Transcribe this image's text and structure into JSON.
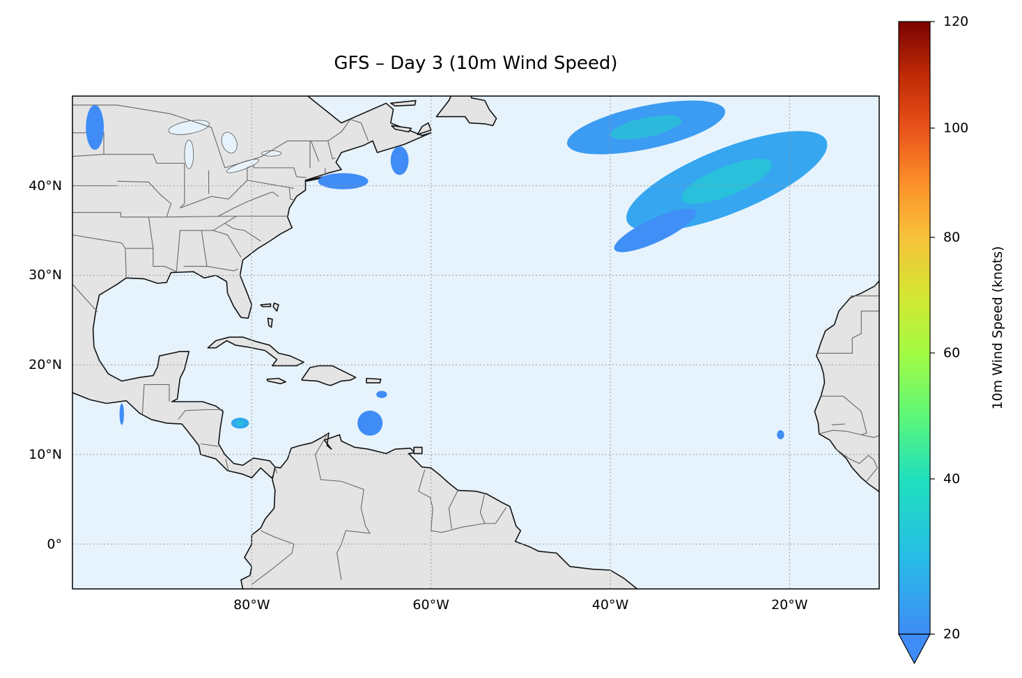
{
  "title": "GFS – Day 3 (10m Wind Speed)",
  "map": {
    "extent": {
      "lon": [
        -100,
        -10
      ],
      "lat": [
        -5,
        50
      ]
    },
    "projection": "PlateCarree",
    "ocean_color": "#e6f3fc",
    "land_color": "#e4e4e4",
    "coast_color": "#111111",
    "gridlines": "dotted",
    "x_ticks": [
      {
        "lon": -80,
        "label": "80°W"
      },
      {
        "lon": -60,
        "label": "60°W"
      },
      {
        "lon": -40,
        "label": "40°W"
      },
      {
        "lon": -20,
        "label": "20°W"
      }
    ],
    "y_ticks": [
      {
        "lat": 40,
        "label": "40°N"
      },
      {
        "lat": 30,
        "label": "30°N"
      },
      {
        "lat": 20,
        "label": "20°N"
      },
      {
        "lat": 10,
        "label": "10°N"
      },
      {
        "lat": 0,
        "label": "0°"
      }
    ]
  },
  "colorbar": {
    "label": "10m Wind Speed (knots)",
    "range": [
      20,
      120
    ],
    "extend": "min",
    "ticks": [
      {
        "value": 120,
        "label": "120"
      },
      {
        "value": 100,
        "label": "100"
      },
      {
        "value": 80,
        "label": "80"
      },
      {
        "value": 60,
        "label": "60"
      },
      {
        "value": 40,
        "label": "40"
      },
      {
        "value": 20,
        "label": "20"
      }
    ],
    "colors": [
      "#3f8cf6",
      "#27bde6",
      "#1fe0bd",
      "#5ef777",
      "#a3fb43",
      "#d4e631",
      "#f6c23a",
      "#fd8f2a",
      "#e8521a",
      "#c02a06",
      "#7a0403"
    ]
  },
  "wind_regions": [
    {
      "name": "central-atlantic-band",
      "lon": -27,
      "lat": 40.5,
      "rx": 12,
      "ry": 3.6,
      "rot": -22,
      "color": "#36a6f0",
      "core": "#25c7d4"
    },
    {
      "name": "north-atlantic-band",
      "lon": -36,
      "lat": 46.5,
      "rx": 9,
      "ry": 2.4,
      "rot": -12,
      "color": "#3c9bf2",
      "core": "#29c0d6"
    },
    {
      "name": "azores-tail",
      "lon": -35,
      "lat": 35,
      "rx": 5,
      "ry": 1.3,
      "rot": -25,
      "color": "#3f8ff6",
      "core": "#3f8ff6"
    },
    {
      "name": "cape-cod-patch",
      "lon": -69.8,
      "lat": 40.5,
      "rx": 2.8,
      "ry": 0.9,
      "rot": 0,
      "color": "#3f8cf6",
      "core": "#3f8cf6"
    },
    {
      "name": "nova-scotia-patch",
      "lon": -63.5,
      "lat": 42.8,
      "rx": 1.0,
      "ry": 1.6,
      "rot": 0,
      "color": "#3f8cf6",
      "core": "#3f8cf6"
    },
    {
      "name": "great-plains-patch",
      "lon": -97.5,
      "lat": 46.5,
      "rx": 1.0,
      "ry": 2.5,
      "rot": 0,
      "color": "#3f8cf6",
      "core": "#3f8cf6"
    },
    {
      "name": "caribbean-patch",
      "lon": -66.8,
      "lat": 13.5,
      "rx": 1.4,
      "ry": 1.4,
      "rot": 0,
      "color": "#3f8cf6",
      "core": "#3f8cf6"
    },
    {
      "name": "nicaragua-patch",
      "lon": -81.3,
      "lat": 13.5,
      "rx": 1.0,
      "ry": 0.6,
      "rot": 0,
      "color": "#2fa8ee",
      "core": "#25c7d4"
    },
    {
      "name": "hispaniola-south-patch",
      "lon": -65.5,
      "lat": 16.7,
      "rx": 0.6,
      "ry": 0.4,
      "rot": 0,
      "color": "#3f8cf6",
      "core": "#3f8cf6"
    },
    {
      "name": "cape-verde-patch",
      "lon": -21,
      "lat": 12.2,
      "rx": 0.4,
      "ry": 0.5,
      "rot": 0,
      "color": "#3f8cf6",
      "core": "#3f8cf6"
    },
    {
      "name": "tehuantepec-patch",
      "lon": -94.5,
      "lat": 14.5,
      "rx": 0.25,
      "ry": 1.2,
      "rot": 0,
      "color": "#3f8cf6",
      "core": "#3f8cf6"
    }
  ]
}
